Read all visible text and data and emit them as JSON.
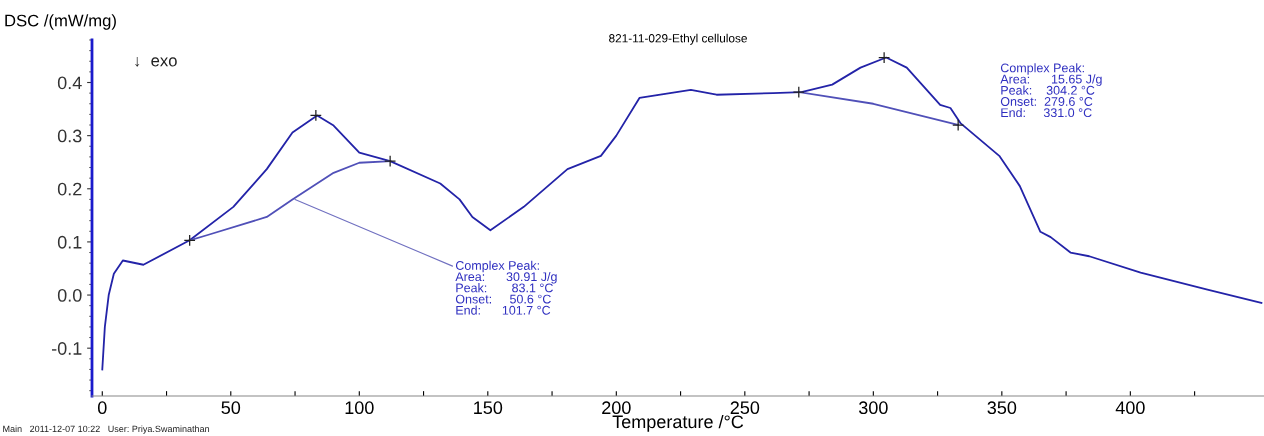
{
  "chart_data": {
    "type": "line",
    "title": "821-11-029-Ethyl cellulose",
    "xlabel": "Temperature /°C",
    "ylabel": "DSC /(mW/mg)",
    "xlim": [
      -4,
      452
    ],
    "ylim": [
      -0.19,
      0.48
    ],
    "xticks": [
      0,
      {
        "value": 25,
        "label": null
      },
      50,
      {
        "value": 75,
        "label": null
      },
      100,
      {
        "value": 125,
        "label": null
      },
      150,
      {
        "value": 175,
        "label": null
      },
      200,
      {
        "value": 225,
        "label": null
      },
      250,
      {
        "value": 275,
        "label": null
      },
      300,
      {
        "value": 325,
        "label": null
      },
      350,
      {
        "value": 375,
        "label": null
      },
      400,
      {
        "value": 425,
        "label": null
      }
    ],
    "yticks": [
      {
        "value": -0.1,
        "label": "-0.1"
      },
      {
        "value": 0,
        "label": "0.0"
      },
      0.1,
      0.2,
      0.3,
      0.4
    ],
    "grid": false,
    "legend": false,
    "series": [
      {
        "color": "#2323a8",
        "x": [
          0,
          1,
          2.5,
          4.5,
          8,
          16,
          34,
          51,
          64,
          74,
          83.6,
          90,
          100,
          112,
          131.5,
          139,
          144,
          151,
          164,
          181,
          194,
          200,
          209,
          229,
          239,
          261,
          272,
          284,
          295,
          305,
          313,
          326,
          330,
          334,
          349,
          357,
          365,
          369,
          376.7,
          384,
          404,
          430,
          451
        ],
        "values": [
          -0.14,
          -0.06,
          0.0,
          0.04,
          0.065,
          0.057,
          0.103,
          0.166,
          0.237,
          0.306,
          0.338,
          0.319,
          0.268,
          0.252,
          0.21,
          0.18,
          0.147,
          0.122,
          0.166,
          0.237,
          0.262,
          0.3,
          0.371,
          0.386,
          0.377,
          0.38,
          0.382,
          0.396,
          0.428,
          0.447,
          0.428,
          0.358,
          0.352,
          0.323,
          0.262,
          0.205,
          0.119,
          0.109,
          0.08,
          0.073,
          0.042,
          0.01,
          -0.015
        ]
      },
      {
        "color": "#5050b8",
        "x": [
          34,
          41,
          64,
          74,
          90,
          100,
          112
        ],
        "values": [
          0.103,
          0.113,
          0.147,
          0.18,
          0.23,
          0.249,
          0.252
        ]
      },
      {
        "color": "#5050b8",
        "x": [
          271,
          300,
          333
        ],
        "values": [
          0.382,
          0.36,
          0.32
        ]
      },
      {
        "type": "scatter",
        "color": "#202020",
        "marker": "cross",
        "x": [
          34,
          83.1,
          112,
          271,
          304.2,
          333
        ],
        "values": [
          0.103,
          0.338,
          0.252,
          0.382,
          0.447,
          0.32
        ]
      }
    ],
    "annotations": [
      "↓  exo",
      {
        "text": "Complex Peak:\nArea:      30.91 J/g\nPeak:       83.1 °C\nOnset:     50.6 °C\nEnd:      101.7 °C",
        "x": 75,
        "y": 0.18
      },
      "Complex Peak:\nArea:      15.65 J/g\nPeak:    304.2 °C\nOnset:  279.6 °C\nEnd:     331.0 °C",
      "Main   2011-12-07 10:22   User: Priya.Swaminathan"
    ]
  }
}
